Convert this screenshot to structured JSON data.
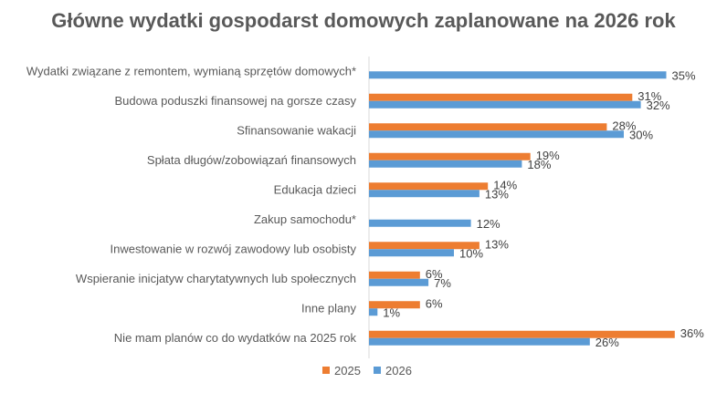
{
  "chart_data": {
    "type": "bar",
    "orientation": "horizontal",
    "title": "Główne wydatki gospodarst domowych zaplanowane na 2026 rok",
    "categories": [
      "Wydatki związane z remontem, wymianą sprzętów domowych*",
      "Budowa poduszki finansowej na gorsze czasy",
      "Sfinansowanie wakacji",
      "Spłata długów/zobowiązań finansowych",
      "Edukacja dzieci",
      "Zakup samochodu*",
      "Inwestowanie w rozwój zawodowy lub osobisty",
      "Wspieranie inicjatyw charytatywnych lub społecznych",
      "Inne plany",
      "Nie mam planów co do wydatków na 2025 rok"
    ],
    "series": [
      {
        "name": "2025",
        "color": "#ED7D31",
        "values": [
          null,
          31,
          28,
          19,
          14,
          null,
          13,
          6,
          6,
          36
        ],
        "labels": [
          "",
          "31%",
          "28%",
          "19%",
          "14%",
          "",
          "13%",
          "6%",
          "6%",
          "36%"
        ]
      },
      {
        "name": "2026",
        "color": "#5B9BD5",
        "values": [
          35,
          32,
          30,
          18,
          13,
          12,
          10,
          7,
          1,
          26
        ],
        "labels": [
          "35%",
          "32%",
          "30%",
          "18%",
          "13%",
          "12%",
          "10%",
          "7%",
          "1%",
          "26%"
        ]
      }
    ],
    "xlim": [
      0,
      40
    ],
    "legend": "bottom",
    "grid": false
  }
}
